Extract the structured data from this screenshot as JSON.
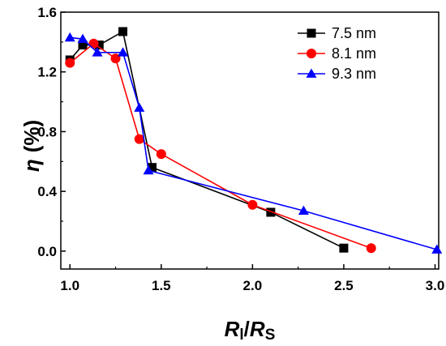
{
  "chart_data": {
    "type": "line",
    "xlabel": {
      "main": "R",
      "sub1": "l",
      "sep": "/",
      "main2": "R",
      "sub2": "S"
    },
    "ylabel": {
      "symbol": "η",
      "unit": "(%)"
    },
    "xlim": [
      0.95,
      3.02
    ],
    "ylim": [
      -0.12,
      1.6
    ],
    "xticks": [
      1.0,
      1.5,
      2.0,
      2.5,
      3.0
    ],
    "xtick_labels": [
      "1.0",
      "1.5",
      "2.0",
      "2.5",
      "3.0"
    ],
    "yticks": [
      0.0,
      0.4,
      0.8,
      1.2,
      1.6
    ],
    "ytick_labels": [
      "0.0",
      "0.4",
      "0.8",
      "1.2",
      "1.6"
    ],
    "grid": false,
    "legend": "top-right",
    "series": [
      {
        "name": "7.5 nm",
        "color": "#000000",
        "marker": "square",
        "x": [
          1.0,
          1.07,
          1.16,
          1.29,
          1.45,
          2.1,
          2.5
        ],
        "y": [
          1.28,
          1.38,
          1.38,
          1.47,
          0.56,
          0.26,
          0.02
        ]
      },
      {
        "name": "8.1 nm",
        "color": "#ff0000",
        "marker": "circle",
        "x": [
          1.0,
          1.13,
          1.25,
          1.38,
          1.5,
          2.0,
          2.65
        ],
        "y": [
          1.26,
          1.39,
          1.29,
          0.75,
          0.65,
          0.31,
          0.02
        ]
      },
      {
        "name": "9.3 nm",
        "color": "#0000ff",
        "marker": "triangle",
        "x": [
          1.0,
          1.07,
          1.15,
          1.29,
          1.38,
          1.43,
          2.28,
          3.01
        ],
        "y": [
          1.43,
          1.42,
          1.33,
          1.33,
          0.96,
          0.54,
          0.27,
          0.01
        ]
      }
    ]
  }
}
